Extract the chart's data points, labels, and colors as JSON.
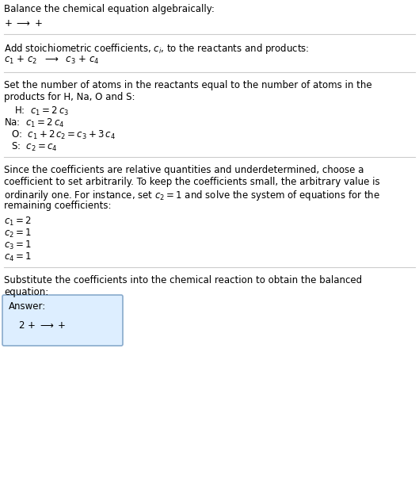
{
  "bg_color": "#ffffff",
  "text_color": "#000000",
  "line_color": "#cccccc",
  "fs": 8.5,
  "section1_line1": "Balance the chemical equation algebraically:",
  "section2_header": "Add stoichiometric coefficients, $c_i$, to the reactants and products:",
  "section3_header1": "Set the number of atoms in the reactants equal to the number of atoms in the",
  "section3_header2": "products for H, Na, O and S:",
  "section4_para": [
    "Since the coefficients are relative quantities and underdetermined, choose a",
    "coefficient to set arbitrarily. To keep the coefficients small, the arbitrary value is",
    "ordinarily one. For instance, set $c_2 = 1$ and solve the system of equations for the",
    "remaining coefficients:"
  ],
  "section5_line1": "Substitute the coefficients into the chemical reaction to obtain the balanced",
  "section5_line2": "equation:",
  "answer_label": "Answer:",
  "answer_box_color": "#ddeeff",
  "answer_box_edge": "#88aacc"
}
